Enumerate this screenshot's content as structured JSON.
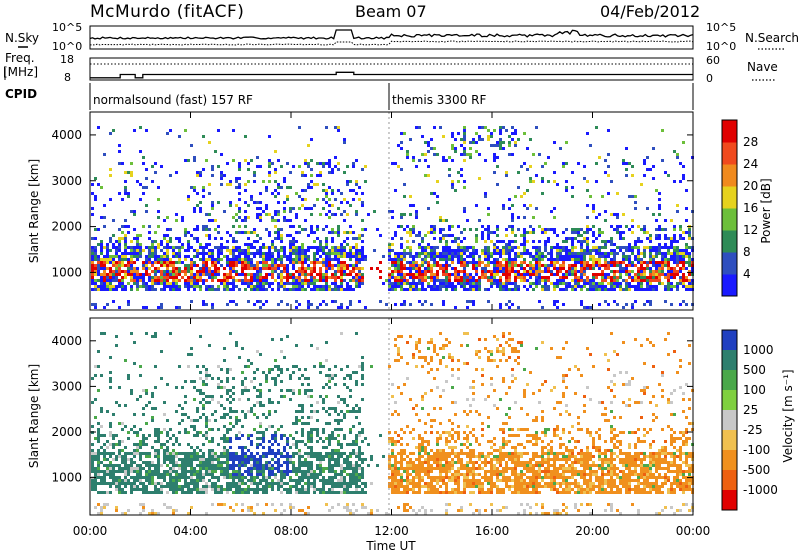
{
  "chart_data": {
    "type": "heatmap",
    "header": {
      "station": "McMurdo (fitACF)",
      "beam": "Beam 07",
      "date": "04/Feb/2012"
    },
    "time_axis": {
      "label": "Time UT",
      "range_hours": [
        0,
        24
      ],
      "ticks": [
        "00:00",
        "04:00",
        "08:00",
        "12:00",
        "16:00",
        "20:00",
        "00:00"
      ]
    },
    "noise_panel": {
      "left_label": "N.Sky",
      "right_label": "N.Search",
      "left_ticks": [
        "10^5",
        "10^0"
      ],
      "right_ticks": [
        "10^5",
        "10^0"
      ]
    },
    "freq_panel": {
      "left_label_1": "Freq.",
      "left_label_2": "[MHz]",
      "right_label": "Nave",
      "left_ticks": [
        "18",
        "8"
      ],
      "right_ticks": [
        "60",
        "0"
      ],
      "freq_steps": [
        {
          "t0": 0.0,
          "t1": 1.2,
          "mhz": 9.0
        },
        {
          "t0": 1.2,
          "t1": 1.8,
          "mhz": 10.5
        },
        {
          "t0": 1.8,
          "t1": 2.1,
          "mhz": 9.0
        },
        {
          "t0": 2.1,
          "t1": 9.8,
          "mhz": 10.5
        },
        {
          "t0": 9.8,
          "t1": 10.5,
          "mhz": 11.5
        },
        {
          "t0": 10.5,
          "t1": 11.9,
          "mhz": 10.5
        },
        {
          "t0": 11.9,
          "t1": 24.0,
          "mhz": 10.5
        }
      ]
    },
    "cpid_panel": {
      "label": "CPID",
      "segments": [
        {
          "t0": 0.0,
          "text": "normalsound (fast) 157 RF"
        },
        {
          "t0": 11.9,
          "text": "themis 3300 RF"
        }
      ]
    },
    "power_panel": {
      "ylabel": "Slant Range [km]",
      "yrange_km": [
        180,
        4500
      ],
      "yticks": [
        1000,
        2000,
        3000,
        4000
      ],
      "colorbar_label": "Power [dB]",
      "colorbar_ticks": [
        "4",
        "8",
        "12",
        "16",
        "20",
        "24",
        "28"
      ],
      "colors": [
        "#1a1aff",
        "#2f4fbf",
        "#2e8b57",
        "#6cbf3a",
        "#e6d21e",
        "#f08a1e",
        "#f04a1e",
        "#e00000"
      ]
    },
    "velocity_panel": {
      "ylabel": "Slant Range [km]",
      "yrange_km": [
        180,
        4500
      ],
      "yticks": [
        1000,
        2000,
        3000,
        4000
      ],
      "colorbar_label": "Velocity [m s⁻¹]",
      "colorbar_ticks": [
        "1000",
        "500",
        "100",
        "25",
        "-25",
        "-100",
        "-500",
        "-1000"
      ],
      "colors": [
        "#2040c0",
        "#2e7f6e",
        "#4aa84a",
        "#7fcf3f",
        "#c8c8c8",
        "#f0c050",
        "#f0901e",
        "#ee6010",
        "#e00000"
      ]
    }
  }
}
